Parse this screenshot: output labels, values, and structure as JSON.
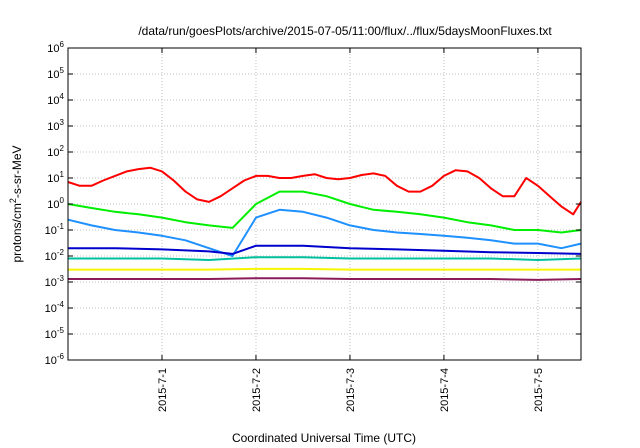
{
  "chart_data": {
    "type": "line",
    "title": "/data/run/goesPlots/archive/2015-07-05/11:00/flux/../flux/5daysMoonFluxes.txt",
    "xlabel": "Coordinated Universal Time (UTC)",
    "ylabel_parts": {
      "pre": "protons/cm",
      "sup": "2",
      "post": "-s-sr-MeV"
    },
    "y_scale": "log",
    "ylim": [
      1e-06,
      1000000.0
    ],
    "xlim": [
      "2015-06-30 00:00",
      "2015-07-05 11:00"
    ],
    "y_ticks": [
      {
        "value": 1e-06,
        "base": "10",
        "exp": "-6"
      },
      {
        "value": 1e-05,
        "base": "10",
        "exp": "-5"
      },
      {
        "value": 0.0001,
        "base": "10",
        "exp": "-4"
      },
      {
        "value": 0.001,
        "base": "10",
        "exp": "-3"
      },
      {
        "value": 0.01,
        "base": "10",
        "exp": "-2"
      },
      {
        "value": 0.1,
        "base": "10",
        "exp": "-1"
      },
      {
        "value": 1,
        "base": "10",
        "exp": "0"
      },
      {
        "value": 10.0,
        "base": "10",
        "exp": "1"
      },
      {
        "value": 100.0,
        "base": "10",
        "exp": "2"
      },
      {
        "value": 1000.0,
        "base": "10",
        "exp": "3"
      },
      {
        "value": 10000.0,
        "base": "10",
        "exp": "4"
      },
      {
        "value": 100000.0,
        "base": "10",
        "exp": "5"
      },
      {
        "value": 1000000.0,
        "base": "10",
        "exp": "6"
      }
    ],
    "x_ticks": [
      {
        "x": "2015-07-01 00:00",
        "label": "2015-7-1"
      },
      {
        "x": "2015-07-02 00:00",
        "label": "2015-7-2"
      },
      {
        "x": "2015-07-03 00:00",
        "label": "2015-7-3"
      },
      {
        "x": "2015-07-04 00:00",
        "label": "2015-7-4"
      },
      {
        "x": "2015-07-05 00:00",
        "label": "2015-7-5"
      }
    ],
    "grid": true,
    "legend": "none",
    "series": [
      {
        "color": "#ff0000",
        "x": [
          "2015-06-30 00:00",
          "2015-06-30 03:00",
          "2015-06-30 06:00",
          "2015-06-30 09:00",
          "2015-06-30 12:00",
          "2015-06-30 15:00",
          "2015-06-30 18:00",
          "2015-06-30 21:00",
          "2015-07-01 00:00",
          "2015-07-01 03:00",
          "2015-07-01 06:00",
          "2015-07-01 09:00",
          "2015-07-01 12:00",
          "2015-07-01 15:00",
          "2015-07-01 18:00",
          "2015-07-01 21:00",
          "2015-07-02 00:00",
          "2015-07-02 03:00",
          "2015-07-02 06:00",
          "2015-07-02 09:00",
          "2015-07-02 12:00",
          "2015-07-02 15:00",
          "2015-07-02 18:00",
          "2015-07-02 21:00",
          "2015-07-03 00:00",
          "2015-07-03 03:00",
          "2015-07-03 06:00",
          "2015-07-03 09:00",
          "2015-07-03 12:00",
          "2015-07-03 15:00",
          "2015-07-03 18:00",
          "2015-07-03 21:00",
          "2015-07-04 00:00",
          "2015-07-04 03:00",
          "2015-07-04 06:00",
          "2015-07-04 09:00",
          "2015-07-04 12:00",
          "2015-07-04 15:00",
          "2015-07-04 18:00",
          "2015-07-04 21:00",
          "2015-07-05 00:00",
          "2015-07-05 03:00",
          "2015-07-05 06:00",
          "2015-07-05 09:00",
          "2015-07-05 11:00"
        ],
        "values": [
          7,
          5,
          5,
          8,
          12,
          18,
          22,
          25,
          18,
          8,
          3,
          1.5,
          1.2,
          2,
          4,
          8,
          12,
          12,
          10,
          10,
          12,
          14,
          10,
          9,
          10,
          13,
          15,
          12,
          5,
          3,
          3,
          5,
          12,
          20,
          18,
          10,
          4,
          2,
          2,
          10,
          5,
          2,
          0.8,
          0.4,
          1.2
        ]
      },
      {
        "color": "#00ee00",
        "x": [
          "2015-06-30 00:00",
          "2015-06-30 06:00",
          "2015-06-30 12:00",
          "2015-06-30 18:00",
          "2015-07-01 00:00",
          "2015-07-01 06:00",
          "2015-07-01 12:00",
          "2015-07-01 18:00",
          "2015-07-02 00:00",
          "2015-07-02 06:00",
          "2015-07-02 12:00",
          "2015-07-02 18:00",
          "2015-07-03 00:00",
          "2015-07-03 06:00",
          "2015-07-03 12:00",
          "2015-07-03 18:00",
          "2015-07-04 00:00",
          "2015-07-04 06:00",
          "2015-07-04 12:00",
          "2015-07-04 18:00",
          "2015-07-05 00:00",
          "2015-07-05 06:00",
          "2015-07-05 11:00"
        ],
        "values": [
          1.0,
          0.7,
          0.5,
          0.4,
          0.3,
          0.2,
          0.15,
          0.12,
          1.0,
          3,
          3,
          2,
          1,
          0.6,
          0.5,
          0.4,
          0.3,
          0.2,
          0.15,
          0.1,
          0.1,
          0.08,
          0.1
        ]
      },
      {
        "color": "#1e90ff",
        "x": [
          "2015-06-30 00:00",
          "2015-06-30 06:00",
          "2015-06-30 12:00",
          "2015-06-30 18:00",
          "2015-07-01 00:00",
          "2015-07-01 06:00",
          "2015-07-01 12:00",
          "2015-07-01 18:00",
          "2015-07-02 00:00",
          "2015-07-02 06:00",
          "2015-07-02 12:00",
          "2015-07-02 18:00",
          "2015-07-03 00:00",
          "2015-07-03 06:00",
          "2015-07-03 12:00",
          "2015-07-03 18:00",
          "2015-07-04 00:00",
          "2015-07-04 06:00",
          "2015-07-04 12:00",
          "2015-07-04 18:00",
          "2015-07-05 00:00",
          "2015-07-05 06:00",
          "2015-07-05 11:00"
        ],
        "values": [
          0.25,
          0.15,
          0.1,
          0.08,
          0.06,
          0.04,
          0.02,
          0.01,
          0.3,
          0.6,
          0.5,
          0.3,
          0.15,
          0.1,
          0.08,
          0.07,
          0.06,
          0.05,
          0.04,
          0.03,
          0.03,
          0.02,
          0.03
        ]
      },
      {
        "color": "#0000cd",
        "x": [
          "2015-06-30 00:00",
          "2015-06-30 12:00",
          "2015-07-01 00:00",
          "2015-07-01 12:00",
          "2015-07-01 18:00",
          "2015-07-02 00:00",
          "2015-07-02 12:00",
          "2015-07-03 00:00",
          "2015-07-03 12:00",
          "2015-07-04 00:00",
          "2015-07-04 12:00",
          "2015-07-05 00:00",
          "2015-07-05 11:00"
        ],
        "values": [
          0.02,
          0.02,
          0.018,
          0.015,
          0.012,
          0.025,
          0.025,
          0.02,
          0.018,
          0.016,
          0.014,
          0.013,
          0.012
        ]
      },
      {
        "color": "#00c0a0",
        "x": [
          "2015-06-30 00:00",
          "2015-06-30 12:00",
          "2015-07-01 00:00",
          "2015-07-01 12:00",
          "2015-07-02 00:00",
          "2015-07-02 12:00",
          "2015-07-03 00:00",
          "2015-07-03 12:00",
          "2015-07-04 00:00",
          "2015-07-04 12:00",
          "2015-07-05 00:00",
          "2015-07-05 11:00"
        ],
        "values": [
          0.008,
          0.008,
          0.008,
          0.007,
          0.009,
          0.009,
          0.008,
          0.008,
          0.008,
          0.008,
          0.007,
          0.008
        ]
      },
      {
        "color": "#f5f500",
        "x": [
          "2015-06-30 00:00",
          "2015-06-30 12:00",
          "2015-07-01 00:00",
          "2015-07-01 12:00",
          "2015-07-02 00:00",
          "2015-07-02 12:00",
          "2015-07-03 00:00",
          "2015-07-03 12:00",
          "2015-07-04 00:00",
          "2015-07-04 12:00",
          "2015-07-05 00:00",
          "2015-07-05 11:00"
        ],
        "values": [
          0.003,
          0.003,
          0.003,
          0.003,
          0.0032,
          0.0032,
          0.003,
          0.003,
          0.003,
          0.003,
          0.003,
          0.003
        ]
      },
      {
        "color": "#8b1a5a",
        "x": [
          "2015-06-30 00:00",
          "2015-06-30 12:00",
          "2015-07-01 00:00",
          "2015-07-01 12:00",
          "2015-07-02 00:00",
          "2015-07-02 12:00",
          "2015-07-03 00:00",
          "2015-07-03 12:00",
          "2015-07-04 00:00",
          "2015-07-04 12:00",
          "2015-07-05 00:00",
          "2015-07-05 11:00"
        ],
        "values": [
          0.0013,
          0.0013,
          0.0013,
          0.0013,
          0.0014,
          0.0014,
          0.0013,
          0.0013,
          0.0013,
          0.0013,
          0.0012,
          0.0013
        ]
      }
    ]
  }
}
